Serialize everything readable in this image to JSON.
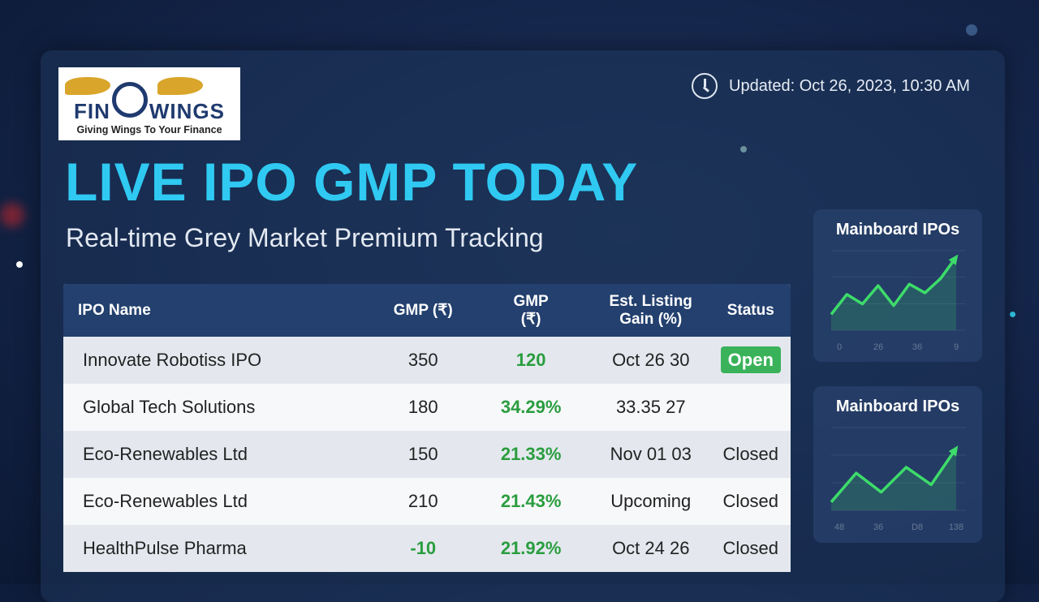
{
  "logo": {
    "brand_left": "FIN",
    "brand_right": "WINGS",
    "tagline": "Giving Wings To Your Finance",
    "registered": "®"
  },
  "header": {
    "updated": "Updated: Oct 26, 2023, 10:30 AM",
    "title": "LIVE IPO GMP TODAY",
    "subtitle": "Real-time Grey Market Premium Tracking"
  },
  "table": {
    "headers": [
      "IPO Name",
      "GMP (₹)",
      "GMP\n(₹)",
      "Est. Listing\nGain (%)",
      "Status"
    ],
    "rows": [
      {
        "name": "Innovate Robotiss IPO",
        "gmp": "350",
        "gmp2": "120",
        "gain": "Oct 26 30",
        "status": "Open"
      },
      {
        "name": "Global Tech Solutions",
        "gmp": "180",
        "gmp2": "34.29%",
        "gain": "33.35 27",
        "status": ""
      },
      {
        "name": "Eco-Renewables Ltd",
        "gmp": "150",
        "gmp2": "21.33%",
        "gain": "Nov 01 03",
        "status": "Closed"
      },
      {
        "name": "Eco-Renewables Ltd",
        "gmp": "210",
        "gmp2": "21.43%",
        "gain": "Upcoming",
        "status": "Closed"
      },
      {
        "name": "HealthPulse Pharma",
        "gmp": "-10",
        "gmp2": "21.92%",
        "gain": "Oct 24 26",
        "status": "Closed"
      }
    ]
  },
  "colors": {
    "accent": "#2fc9f2",
    "green": "#2a9d3f",
    "line": "#3ddc6a"
  },
  "chart_data": [
    {
      "type": "line",
      "title": "Mainboard IPOs",
      "xticks": [
        "0",
        "26",
        "36",
        "9"
      ],
      "values": [
        20,
        45,
        33,
        56,
        31,
        58,
        47,
        65,
        92
      ],
      "ylim": [
        0,
        100
      ]
    },
    {
      "type": "line",
      "title": "Mainboard IPOs",
      "xticks": [
        "48",
        "36",
        "D8",
        "138"
      ],
      "values": [
        10,
        45,
        22,
        52,
        31,
        75
      ],
      "ylim": [
        0,
        100
      ]
    }
  ]
}
